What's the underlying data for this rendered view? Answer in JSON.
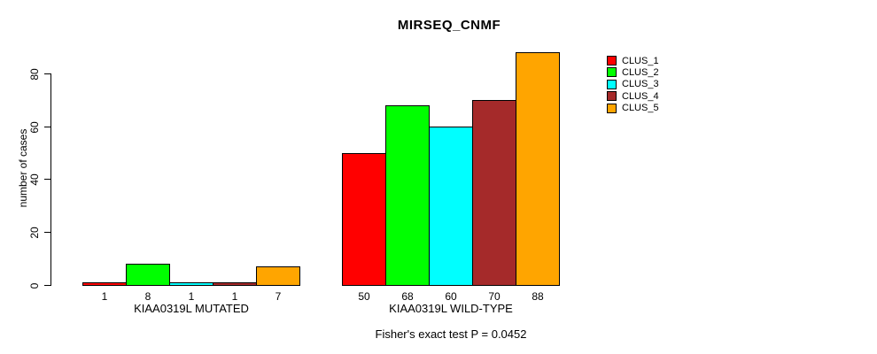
{
  "chart_data": {
    "type": "bar",
    "title": "MIRSEQ_CNMF",
    "ylabel": "number of cases",
    "xlabel": "",
    "ylim": [
      0,
      80
    ],
    "yticks": [
      0,
      20,
      40,
      60,
      80
    ],
    "grid": false,
    "legend_position": "right",
    "legend": [
      {
        "name": "CLUS_1",
        "color": "#FF0000"
      },
      {
        "name": "CLUS_2",
        "color": "#00FF00"
      },
      {
        "name": "CLUS_3",
        "color": "#00FFFF"
      },
      {
        "name": "CLUS_4",
        "color": "#A52A2A"
      },
      {
        "name": "CLUS_5",
        "color": "#FFA500"
      }
    ],
    "groups": [
      {
        "label": "KIAA0319L MUTATED",
        "values": [
          1,
          8,
          1,
          1,
          7
        ]
      },
      {
        "label": "KIAA0319L WILD-TYPE",
        "values": [
          50,
          68,
          60,
          70,
          88
        ]
      }
    ],
    "annotation": "Fisher's exact test P = 0.0452",
    "colors": {
      "axis": "#000000",
      "background": "#FFFFFF"
    }
  }
}
